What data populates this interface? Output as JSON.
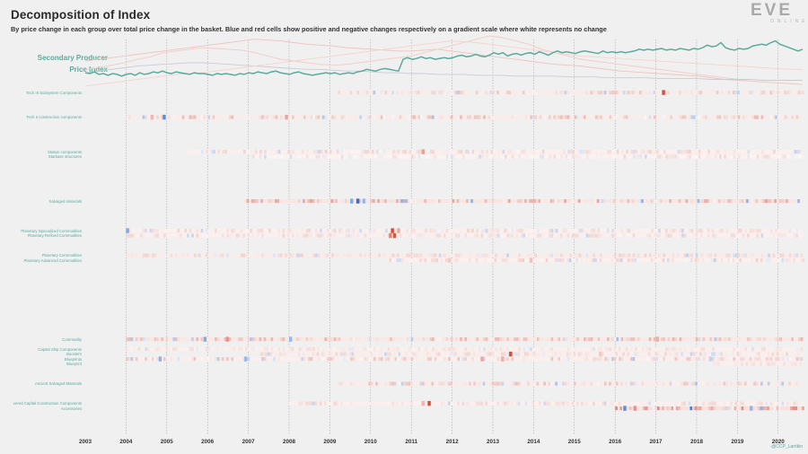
{
  "header": {
    "title": "Decomposition of Index",
    "subtitle": "By price change in each group over total price change in the basket. Blue and red cells show positive and negative changes respectively on a gradient scale where white represents no change",
    "credit": "@CCP_Larrikin"
  },
  "logo": {
    "main": "EVE",
    "sub": "ONLINE"
  },
  "colors": {
    "background": "#f0f0f0",
    "index_line": "#5aaa9e",
    "label_teal": "#5aaa9e",
    "faint_label": "#c7dfdb",
    "positive": "#2f6fd1",
    "negative": "#d24e3a",
    "neutral": "#ffffff"
  },
  "chart_data": {
    "type": "heatmap",
    "title": "Decomposition of Index",
    "index_series": {
      "name": "Secondary Producer Price Index",
      "name_lines": [
        "Secondary Producer",
        "Price Index"
      ],
      "values": [
        0.46,
        0.45,
        0.47,
        0.44,
        0.45,
        0.43,
        0.45,
        0.44,
        0.42,
        0.44,
        0.45,
        0.43,
        0.46,
        0.44,
        0.45,
        0.47,
        0.46,
        0.48,
        0.46,
        0.45,
        0.47,
        0.46,
        0.45,
        0.44,
        0.46,
        0.45,
        0.45,
        0.44,
        0.43,
        0.45,
        0.44,
        0.45,
        0.44,
        0.43,
        0.45,
        0.44,
        0.46,
        0.45,
        0.47,
        0.46,
        0.45,
        0.47,
        0.48,
        0.46,
        0.45,
        0.44,
        0.46,
        0.47,
        0.45,
        0.44,
        0.43,
        0.44,
        0.45,
        0.46,
        0.45,
        0.46,
        0.44,
        0.45,
        0.46,
        0.45,
        0.47,
        0.48,
        0.5,
        0.49,
        0.48,
        0.5,
        0.51,
        0.5,
        0.49,
        0.48,
        0.62,
        0.64,
        0.62,
        0.63,
        0.65,
        0.63,
        0.64,
        0.62,
        0.63,
        0.64,
        0.63,
        0.64,
        0.66,
        0.67,
        0.65,
        0.66,
        0.68,
        0.66,
        0.65,
        0.67,
        0.7,
        0.68,
        0.7,
        0.66,
        0.68,
        0.69,
        0.67,
        0.69,
        0.7,
        0.68,
        0.71,
        0.69,
        0.67,
        0.7,
        0.72,
        0.7,
        0.71,
        0.7,
        0.69,
        0.71,
        0.72,
        0.71,
        0.7,
        0.69,
        0.72,
        0.7,
        0.71,
        0.7,
        0.71,
        0.7,
        0.71,
        0.72,
        0.74,
        0.73,
        0.74,
        0.73,
        0.74,
        0.75,
        0.73,
        0.74,
        0.73,
        0.75,
        0.74,
        0.73,
        0.75,
        0.74,
        0.76,
        0.79,
        0.77,
        0.78,
        0.82,
        0.76,
        0.74,
        0.73,
        0.75,
        0.74,
        0.75,
        0.78,
        0.79,
        0.8,
        0.79,
        0.82,
        0.84,
        0.8,
        0.78,
        0.76,
        0.74,
        0.72,
        0.74
      ]
    },
    "index_ylim": [
      0.3,
      0.9
    ],
    "background_series": [
      {
        "values": [
          0.6,
          0.62,
          0.64,
          0.66,
          0.68,
          0.7,
          0.72,
          0.74,
          0.76,
          0.78,
          0.8,
          0.82,
          0.84,
          0.86,
          0.85,
          0.84,
          0.82,
          0.8,
          0.79,
          0.78,
          0.76,
          0.75,
          0.74,
          0.73,
          0.72,
          0.72,
          0.73,
          0.74,
          0.72,
          0.7,
          0.68,
          0.66,
          0.64,
          0.62,
          0.6,
          0.58,
          0.56,
          0.55,
          0.54,
          0.52,
          0.5,
          0.48,
          0.47,
          0.46,
          0.45,
          0.44,
          0.43,
          0.42,
          0.4,
          0.38,
          0.37,
          0.36,
          0.35,
          0.34,
          0.33,
          0.32
        ]
      },
      {
        "values": [
          0.5,
          0.52,
          0.55,
          0.58,
          0.62,
          0.65,
          0.7,
          0.72,
          0.74,
          0.76,
          0.75,
          0.74,
          0.73,
          0.7,
          0.66,
          0.62,
          0.6,
          0.58,
          0.56,
          0.55,
          0.56,
          0.58,
          0.6,
          0.62,
          0.64,
          0.66,
          0.7,
          0.74,
          0.78,
          0.82,
          0.86,
          0.9,
          0.88,
          0.84,
          0.8,
          0.74,
          0.7,
          0.66,
          0.62,
          0.6,
          0.58,
          0.56,
          0.54,
          0.52,
          0.5,
          0.48,
          0.46,
          0.44,
          0.42,
          0.4,
          0.38,
          0.36,
          0.35,
          0.34,
          0.33,
          0.32
        ]
      },
      {
        "values": [
          0.46,
          0.48,
          0.5,
          0.52,
          0.54,
          0.55,
          0.56,
          0.57,
          0.58,
          0.58,
          0.57,
          0.56,
          0.55,
          0.54,
          0.53,
          0.52,
          0.51,
          0.5,
          0.5,
          0.49,
          0.48,
          0.48,
          0.47,
          0.46,
          0.46,
          0.45,
          0.45,
          0.44,
          0.44,
          0.44,
          0.43,
          0.43,
          0.43,
          0.42,
          0.42,
          0.42,
          0.42,
          0.41,
          0.41,
          0.41,
          0.4,
          0.4,
          0.4,
          0.4,
          0.39,
          0.39,
          0.39,
          0.39,
          0.38,
          0.38,
          0.38,
          0.38,
          0.37,
          0.37,
          0.37,
          0.37
        ]
      },
      {
        "values": [
          0.3,
          0.32,
          0.34,
          0.36,
          0.38,
          0.4,
          0.42,
          0.44,
          0.45,
          0.46,
          0.48,
          0.5,
          0.52,
          0.54,
          0.56,
          0.58,
          0.6,
          0.62,
          0.64,
          0.66,
          0.68,
          0.7,
          0.72,
          0.74,
          0.76,
          0.78,
          0.8,
          0.82,
          0.84,
          0.83,
          0.82,
          0.8,
          0.78,
          0.76,
          0.74,
          0.72,
          0.7,
          0.68,
          0.66,
          0.65,
          0.64,
          0.63,
          0.62,
          0.61,
          0.6,
          0.59,
          0.58,
          0.57,
          0.56,
          0.55,
          0.54,
          0.53,
          0.52,
          0.51,
          0.5,
          0.5
        ]
      }
    ],
    "x_start": 2003.0,
    "x_end": 2020.6,
    "xticks": [
      "2003",
      "2004",
      "2005",
      "2006",
      "2007",
      "2008",
      "2009",
      "2010",
      "2011",
      "2012",
      "2013",
      "2014",
      "2015",
      "2016",
      "2017",
      "2018",
      "2019",
      "2020"
    ],
    "gridline_years": [
      2004,
      2005,
      2006,
      2007,
      2008,
      2009,
      2010,
      2011,
      2012,
      2013,
      2014,
      2015,
      2016,
      2017,
      2018,
      2019,
      2020
    ],
    "rows": [
      {
        "label": "Tech III Subsystem Components",
        "shown": true,
        "start": 2009.2,
        "base": 0.15,
        "noise": 0.25,
        "events": [
          [
            2017.15,
            1.0
          ]
        ]
      },
      {
        "label": "",
        "start": null
      },
      {
        "label": "",
        "start": null
      },
      {
        "label": "",
        "start": null
      },
      {
        "label": "",
        "start": null
      },
      {
        "label": "Tech II construction components",
        "shown": true,
        "start": 2004.0,
        "base": 0.15,
        "noise": 0.35,
        "events": [
          [
            2004.9,
            -0.8
          ],
          [
            2004.6,
            0.4
          ],
          [
            2007.9,
            0.5
          ]
        ]
      },
      {
        "label": "",
        "start": null
      },
      {
        "label": "",
        "start": null
      },
      {
        "label": "",
        "start": null
      },
      {
        "label": "",
        "start": null
      },
      {
        "label": "",
        "start": null
      },
      {
        "label": "",
        "start": null
      },
      {
        "label": "Station components",
        "shown": true,
        "start": 2005.5,
        "base": 0.12,
        "noise": 0.2,
        "events": [
          [
            2011.25,
            0.55
          ]
        ]
      },
      {
        "label": "Starbase structures",
        "shown": true,
        "start": 2007.1,
        "base": 0.1,
        "noise": 0.2,
        "events": []
      },
      {
        "label": "",
        "start": null
      },
      {
        "label": "",
        "start": null
      },
      {
        "label": "",
        "start": null
      },
      {
        "label": "",
        "start": null
      },
      {
        "label": "",
        "start": null
      },
      {
        "label": "",
        "start": null
      },
      {
        "label": "",
        "start": null
      },
      {
        "label": "",
        "start": null
      },
      {
        "label": "Salvaged materials",
        "shown": true,
        "start": 2006.9,
        "base": 0.2,
        "noise": 0.45,
        "events": [
          [
            2009.65,
            -1.0
          ],
          [
            2009.5,
            -0.6
          ],
          [
            2009.8,
            -0.5
          ]
        ]
      },
      {
        "label": "",
        "start": null
      },
      {
        "label": "",
        "start": null
      },
      {
        "label": "",
        "start": null
      },
      {
        "label": "",
        "start": null
      },
      {
        "label": "",
        "start": null
      },
      {
        "label": "Planetary Specialized Commodities",
        "shown": true,
        "start": 2004.0,
        "base": 0.12,
        "noise": 0.18,
        "events": [
          [
            2010.5,
            1.0
          ],
          [
            2010.65,
            0.5
          ],
          [
            2004.0,
            -0.6
          ]
        ]
      },
      {
        "label": "Planetary Refined Commodities",
        "shown": true,
        "start": 2004.0,
        "base": 0.12,
        "noise": 0.18,
        "events": [
          [
            2010.55,
            0.95
          ],
          [
            2010.45,
            0.7
          ]
        ]
      },
      {
        "label": "",
        "start": null
      },
      {
        "label": "",
        "start": null
      },
      {
        "label": "",
        "start": null
      },
      {
        "label": "Planetary Commodities",
        "shown": true,
        "start": 2004.0,
        "base": 0.15,
        "noise": 0.15,
        "events": []
      },
      {
        "label": "Planetary Advanced Commodities",
        "shown": true,
        "start": 2010.4,
        "base": 0.12,
        "noise": 0.22,
        "events": [
          [
            2013.9,
            0.35
          ],
          [
            2011.9,
            0.3
          ]
        ]
      },
      {
        "label": "",
        "start": null
      },
      {
        "label": "",
        "start": null
      },
      {
        "label": "",
        "start": null
      },
      {
        "label": "",
        "start": null
      },
      {
        "label": "",
        "start": null
      },
      {
        "label": "",
        "start": null
      },
      {
        "label": "",
        "start": null
      },
      {
        "label": "",
        "start": null
      },
      {
        "label": "",
        "start": null
      },
      {
        "label": "",
        "start": null
      },
      {
        "label": "",
        "start": null
      },
      {
        "label": "",
        "start": null
      },
      {
        "label": "",
        "start": null
      },
      {
        "label": "",
        "start": null
      },
      {
        "label": "",
        "start": null
      },
      {
        "label": "Commodity",
        "shown": true,
        "start": 2004.0,
        "base": 0.18,
        "noise": 0.35,
        "events": [
          [
            2005.9,
            -0.6
          ],
          [
            2006.45,
            0.6
          ],
          [
            2008.0,
            -0.5
          ],
          [
            2017.0,
            0.45
          ]
        ]
      },
      {
        "label": "",
        "start": null
      },
      {
        "label": "Capital Ship Components",
        "shown": true,
        "start": 2004.0,
        "base": 0.12,
        "noise": 0.12,
        "events": []
      },
      {
        "label": "Boosters",
        "shown": true,
        "start": 2007.3,
        "base": 0.14,
        "noise": 0.15,
        "events": [
          [
            2013.4,
            1.0
          ],
          [
            2015.6,
            0.3
          ]
        ]
      },
      {
        "label": "Blueprints",
        "shown": true,
        "start": 2004.0,
        "base": 0.14,
        "noise": 0.3,
        "events": [
          [
            2004.8,
            -0.55
          ],
          [
            2006.9,
            -0.5
          ],
          [
            2012.7,
            0.5
          ],
          [
            2013.2,
            0.45
          ],
          [
            2018.3,
            -0.3
          ]
        ]
      },
      {
        "label": "Blueprint",
        "shown": true,
        "start": 2018.4,
        "base": 0.14,
        "noise": 0.1,
        "events": []
      },
      {
        "label": "",
        "start": null
      },
      {
        "label": "",
        "start": null
      },
      {
        "label": "",
        "start": null
      },
      {
        "label": "Ancient Salvaged Materials",
        "shown": true,
        "start": 2009.2,
        "base": 0.15,
        "noise": 0.3,
        "events": []
      },
      {
        "label": "",
        "start": null
      },
      {
        "label": "",
        "start": null
      },
      {
        "label": "",
        "start": null
      },
      {
        "label": "vered Capital Construction Components",
        "shown": true,
        "start": 2008.0,
        "base": 0.12,
        "noise": 0.18,
        "events": [
          [
            2011.4,
            1.0
          ],
          [
            2011.25,
            0.4
          ]
        ]
      },
      {
        "label": "Accessories",
        "shown": true,
        "start": 2016.0,
        "base": 0.25,
        "noise": 0.7,
        "events": [
          [
            2016.2,
            -0.8
          ],
          [
            2016.45,
            0.6
          ],
          [
            2019.3,
            -0.5
          ]
        ]
      },
      {
        "label": "",
        "start": null
      }
    ]
  }
}
